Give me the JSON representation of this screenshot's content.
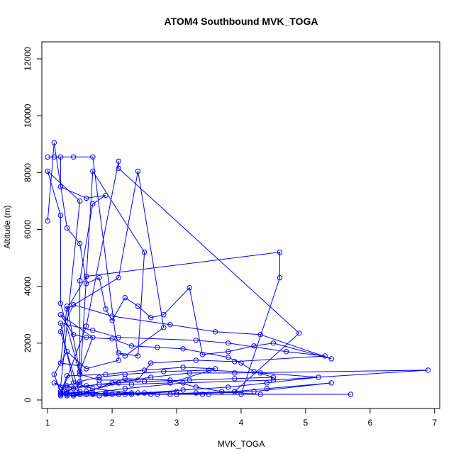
{
  "chart_data": {
    "type": "line",
    "title": "ATOM4 Southbound MVK_TOGA",
    "xlabel": "MVK_TOGA",
    "ylabel": "Altitude (m)",
    "xlim": [
      0.91,
      7.08
    ],
    "ylim": [
      -300,
      12600
    ],
    "xticks": [
      1,
      2,
      3,
      4,
      5,
      6,
      7
    ],
    "yticks": [
      0,
      2000,
      4000,
      6000,
      8000,
      10000,
      12000
    ],
    "series_color": "#0000ff",
    "marker": "open-circle",
    "series": [
      {
        "points": [
          [
            1.0,
            6300
          ],
          [
            1.1,
            9050
          ],
          [
            1.3,
            6050
          ],
          [
            1.5,
            5500
          ],
          [
            1.6,
            4100
          ],
          [
            1.8,
            4300
          ],
          [
            1.9,
            3200
          ],
          [
            2.0,
            2800
          ],
          [
            2.2,
            3600
          ],
          [
            2.4,
            3300
          ],
          [
            2.6,
            2900
          ],
          [
            2.8,
            3000
          ],
          [
            3.2,
            3950
          ],
          [
            3.4,
            1600
          ],
          [
            3.8,
            1700
          ],
          [
            4.2,
            1900
          ],
          [
            4.5,
            2000
          ],
          [
            5.4,
            1450
          ],
          [
            4.3,
            2300
          ],
          [
            3.6,
            2400
          ],
          [
            2.9,
            2650
          ],
          [
            2.0,
            2950
          ],
          [
            1.4,
            3350
          ],
          [
            1.2,
            2400
          ],
          [
            1.5,
            200
          ],
          [
            2.2,
            750
          ],
          [
            2.9,
            700
          ],
          [
            3.3,
            450
          ],
          [
            3.7,
            300
          ],
          [
            4.3,
            200
          ],
          [
            5.7,
            200
          ],
          [
            3.4,
            200
          ],
          [
            2.1,
            200
          ],
          [
            1.2,
            300
          ],
          [
            1.1,
            900
          ],
          [
            1.3,
            1700
          ],
          [
            1.6,
            1100
          ],
          [
            2.1,
            1400
          ],
          [
            1.7,
            8550
          ],
          [
            1.4,
            8550
          ],
          [
            1.0,
            8550
          ],
          [
            1.1,
            8550
          ],
          [
            1.2,
            8550
          ],
          [
            1.2,
            7500
          ],
          [
            1.6,
            7100
          ],
          [
            1.9,
            7200
          ],
          [
            1.7,
            6900
          ],
          [
            1.5,
            4200
          ],
          [
            1.5,
            1200
          ],
          [
            1.2,
            1300
          ],
          [
            1.3,
            3300
          ],
          [
            1.5,
            1000
          ],
          [
            1.7,
            2200
          ],
          [
            1.2,
            3000
          ],
          [
            1.4,
            2300
          ],
          [
            1.6,
            2200
          ],
          [
            2.0,
            2150
          ],
          [
            2.3,
            1900
          ],
          [
            2.7,
            1850
          ],
          [
            3.1,
            1800
          ],
          [
            3.8,
            1500
          ],
          [
            4.0,
            1300
          ],
          [
            4.2,
            1000
          ],
          [
            4.5,
            800
          ],
          [
            3.9,
            750
          ],
          [
            3.2,
            700
          ],
          [
            2.5,
            650
          ],
          [
            2.0,
            600
          ],
          [
            1.6,
            500
          ],
          [
            1.3,
            450
          ],
          [
            1.1,
            600
          ],
          [
            1.4,
            200
          ],
          [
            1.9,
            200
          ],
          [
            2.5,
            250
          ],
          [
            3.1,
            350
          ],
          [
            3.8,
            450
          ],
          [
            4.4,
            600
          ],
          [
            5.2,
            800
          ],
          [
            4.3,
            950
          ],
          [
            3.5,
            1050
          ],
          [
            2.8,
            1000
          ],
          [
            2.2,
            900
          ],
          [
            1.8,
            800
          ],
          [
            1.5,
            650
          ],
          [
            1.3,
            500
          ],
          [
            1.5,
            300
          ],
          [
            2.0,
            200
          ],
          [
            2.7,
            200
          ],
          [
            3.3,
            250
          ],
          [
            3.9,
            300
          ],
          [
            4.4,
            400
          ],
          [
            5.4,
            600
          ],
          [
            4.2,
            300
          ],
          [
            3.0,
            200
          ],
          [
            2.2,
            200
          ],
          [
            1.6,
            200
          ],
          [
            1.3,
            200
          ],
          [
            1.2,
            150
          ],
          [
            1.6,
            2600
          ],
          [
            2.1,
            8400
          ],
          [
            2.1,
            8150
          ],
          [
            4.9,
            2350
          ],
          [
            3.9,
            300
          ],
          [
            2.6,
            200
          ],
          [
            1.7,
            200
          ],
          [
            1.3,
            250
          ],
          [
            1.2,
            450
          ],
          [
            1.5,
            7000
          ],
          [
            1.0,
            8050
          ],
          [
            1.2,
            6500
          ],
          [
            1.2,
            3400
          ],
          [
            1.5,
            900
          ],
          [
            1.8,
            700
          ],
          [
            2.4,
            700
          ],
          [
            2.6,
            1300
          ],
          [
            3.3,
            1400
          ],
          [
            3.9,
            1350
          ],
          [
            5.3,
            1550
          ],
          [
            4.7,
            1700
          ],
          [
            3.8,
            2000
          ],
          [
            3.3,
            2100
          ],
          [
            2.1,
            2200
          ],
          [
            1.7,
            2450
          ],
          [
            1.2,
            2700
          ],
          [
            1.4,
            600
          ],
          [
            1.7,
            400
          ],
          [
            2.3,
            250
          ],
          [
            2.9,
            200
          ],
          [
            3.5,
            200
          ],
          [
            4.0,
            200
          ],
          [
            4.6,
            4300
          ],
          [
            4.6,
            5200
          ],
          [
            1.6,
            4350
          ],
          [
            1.3,
            3200
          ],
          [
            2.1,
            4300
          ],
          [
            2.4,
            8050
          ],
          [
            2.8,
            2550
          ],
          [
            2.2,
            1550
          ],
          [
            2.1,
            1650
          ],
          [
            2.4,
            1550
          ],
          [
            2.5,
            5200
          ],
          [
            1.7,
            8050
          ],
          [
            1.5,
            550
          ],
          [
            1.2,
            200
          ],
          [
            1.6,
            300
          ],
          [
            2.1,
            600
          ],
          [
            2.6,
            800
          ],
          [
            3.2,
            950
          ],
          [
            3.9,
            950
          ],
          [
            6.9,
            1050
          ],
          [
            4.5,
            700
          ],
          [
            3.1,
            600
          ],
          [
            2.2,
            400
          ],
          [
            1.7,
            250
          ],
          [
            1.4,
            200
          ],
          [
            1.2,
            250
          ],
          [
            1.3,
            850
          ],
          [
            1.9,
            900
          ],
          [
            2.5,
            1050
          ],
          [
            3.1,
            1150
          ],
          [
            3.6,
            1100
          ],
          [
            2.9,
            600
          ],
          [
            2.3,
            550
          ],
          [
            1.8,
            550
          ],
          [
            1.4,
            400
          ],
          [
            1.2,
            200
          ],
          [
            1.3,
            150
          ],
          [
            1.9,
            250
          ],
          [
            2.4,
            250
          ],
          [
            3.0,
            300
          ],
          [
            2.3,
            200
          ],
          [
            1.8,
            150
          ],
          [
            1.4,
            150
          ]
        ]
      }
    ]
  }
}
